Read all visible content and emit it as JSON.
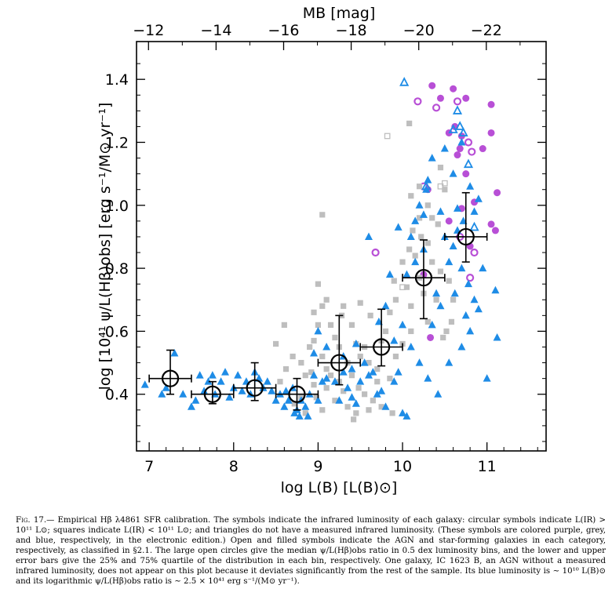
{
  "chart_data": {
    "type": "scatter",
    "xlabel": "log L(B) [L(B)⊙]",
    "ylabel": "log [10⁴¹ ψ/L(Hβ)obs] [erg s⁻¹/M⊙ yr⁻¹]",
    "top_xlabel": "MB [mag]",
    "xlim": [
      6.85,
      11.7
    ],
    "ylim": [
      0.22,
      1.52
    ],
    "xticks": [
      7,
      8,
      9,
      10,
      11
    ],
    "yticks": [
      0.4,
      0.6,
      0.8,
      1.0,
      1.2,
      1.4
    ],
    "xtick_labels": [
      "7",
      "8",
      "9",
      "10",
      "11"
    ],
    "ytick_labels": [
      "0.4",
      "0.6",
      "0.8",
      "1.0",
      "1.2",
      "1.4"
    ],
    "top_ticks": [
      -12,
      -14,
      -16,
      -18,
      -20,
      -22
    ],
    "top_tick_labels": [
      "−12",
      "−14",
      "−16",
      "−18",
      "−20",
      "−22"
    ],
    "colors": {
      "purple": "#b84fd6",
      "grey": "#bebebe",
      "blue": "#1e8ce6",
      "median": "#000000"
    },
    "series": [
      {
        "marker": "filled-circle",
        "color": "purple",
        "points": [
          [
            10.35,
            1.38
          ],
          [
            10.6,
            1.37
          ],
          [
            10.75,
            1.34
          ],
          [
            10.45,
            1.34
          ],
          [
            11.05,
            1.32
          ],
          [
            10.55,
            1.23
          ],
          [
            10.7,
            1.22
          ],
          [
            10.68,
            1.18
          ],
          [
            10.62,
            1.25
          ],
          [
            11.05,
            1.23
          ],
          [
            10.65,
            1.16
          ],
          [
            10.95,
            1.18
          ],
          [
            10.75,
            1.1
          ],
          [
            10.3,
            1.05
          ],
          [
            11.12,
            1.04
          ],
          [
            10.85,
            1.01
          ],
          [
            10.7,
            0.99
          ],
          [
            10.55,
            0.95
          ],
          [
            11.05,
            0.94
          ],
          [
            11.1,
            0.92
          ],
          [
            10.8,
            0.87
          ],
          [
            10.25,
            0.78
          ],
          [
            10.33,
            0.58
          ]
        ]
      },
      {
        "marker": "open-circle",
        "color": "purple",
        "points": [
          [
            10.18,
            1.33
          ],
          [
            10.4,
            1.31
          ],
          [
            10.65,
            1.33
          ],
          [
            10.78,
            1.2
          ],
          [
            10.82,
            1.17
          ],
          [
            10.25,
            1.06
          ],
          [
            10.68,
            0.9
          ],
          [
            10.85,
            0.85
          ],
          [
            9.68,
            0.85
          ],
          [
            10.8,
            0.77
          ]
        ]
      },
      {
        "marker": "filled-square",
        "color": "grey",
        "points": [
          [
            10.08,
            1.26
          ],
          [
            10.45,
            1.12
          ],
          [
            10.2,
            1.06
          ],
          [
            10.1,
            1.03
          ],
          [
            10.3,
            1.0
          ],
          [
            10.35,
            0.96
          ],
          [
            10.42,
            0.94
          ],
          [
            10.12,
            0.92
          ],
          [
            10.22,
            0.9
          ],
          [
            10.3,
            0.88
          ],
          [
            10.08,
            0.86
          ],
          [
            10.15,
            0.84
          ],
          [
            10.35,
            0.82
          ],
          [
            10.0,
            0.82
          ],
          [
            10.45,
            0.79
          ],
          [
            10.2,
            0.77
          ],
          [
            10.55,
            0.76
          ],
          [
            9.9,
            0.76
          ],
          [
            10.05,
            0.74
          ],
          [
            10.25,
            0.72
          ],
          [
            10.4,
            0.7
          ],
          [
            10.1,
            0.68
          ],
          [
            9.92,
            0.7
          ],
          [
            9.85,
            0.66
          ],
          [
            10.3,
            0.63
          ],
          [
            10.52,
            0.6
          ],
          [
            10.1,
            0.6
          ],
          [
            9.8,
            0.6
          ],
          [
            9.75,
            0.57
          ],
          [
            9.55,
            0.55
          ],
          [
            9.45,
            0.56
          ],
          [
            9.5,
            0.52
          ],
          [
            9.6,
            0.5
          ],
          [
            9.7,
            0.48
          ],
          [
            9.35,
            0.5
          ],
          [
            9.25,
            0.55
          ],
          [
            9.2,
            0.58
          ],
          [
            9.15,
            0.62
          ],
          [
            9.28,
            0.65
          ],
          [
            9.1,
            0.7
          ],
          [
            9.05,
            0.68
          ],
          [
            9.3,
            0.68
          ],
          [
            9.5,
            0.69
          ],
          [
            9.4,
            0.62
          ],
          [
            9.0,
            0.62
          ],
          [
            8.95,
            0.57
          ],
          [
            8.9,
            0.55
          ],
          [
            9.05,
            0.52
          ],
          [
            9.1,
            0.48
          ],
          [
            8.92,
            0.47
          ],
          [
            8.85,
            0.46
          ],
          [
            8.8,
            0.5
          ],
          [
            8.7,
            0.52
          ],
          [
            8.62,
            0.48
          ],
          [
            8.95,
            0.43
          ],
          [
            9.1,
            0.42
          ],
          [
            9.3,
            0.41
          ],
          [
            9.48,
            0.42
          ],
          [
            9.55,
            0.4
          ],
          [
            9.65,
            0.38
          ],
          [
            9.75,
            0.36
          ],
          [
            9.6,
            0.35
          ],
          [
            9.45,
            0.34
          ],
          [
            9.35,
            0.36
          ],
          [
            9.42,
            0.32
          ],
          [
            9.2,
            0.38
          ],
          [
            8.98,
            0.39
          ],
          [
            8.8,
            0.39
          ],
          [
            8.72,
            0.37
          ],
          [
            8.85,
            0.34
          ],
          [
            9.05,
            0.35
          ],
          [
            9.0,
            0.75
          ],
          [
            8.95,
            0.66
          ],
          [
            8.6,
            0.62
          ],
          [
            8.5,
            0.56
          ],
          [
            8.55,
            0.44
          ],
          [
            9.7,
            0.44
          ],
          [
            9.85,
            0.45
          ],
          [
            9.92,
            0.52
          ],
          [
            10.0,
            0.56
          ],
          [
            9.88,
            0.34
          ],
          [
            9.15,
            0.46
          ],
          [
            9.25,
            0.44
          ],
          [
            9.4,
            0.46
          ],
          [
            9.62,
            0.65
          ],
          [
            10.58,
            0.63
          ],
          [
            10.48,
            0.58
          ],
          [
            10.6,
            0.7
          ],
          [
            10.2,
            0.96
          ],
          [
            9.05,
            0.97
          ],
          [
            10.5,
            1.05
          ]
        ]
      },
      {
        "marker": "open-square",
        "color": "grey",
        "points": [
          [
            9.82,
            1.22
          ],
          [
            10.5,
            1.07
          ],
          [
            10.45,
            1.06
          ],
          [
            10.0,
            0.74
          ]
        ]
      },
      {
        "marker": "filled-triangle",
        "color": "blue",
        "points": [
          [
            6.95,
            0.43
          ],
          [
            7.3,
            0.53
          ],
          [
            7.2,
            0.42
          ],
          [
            7.15,
            0.4
          ],
          [
            7.4,
            0.4
          ],
          [
            7.5,
            0.36
          ],
          [
            7.55,
            0.38
          ],
          [
            7.6,
            0.46
          ],
          [
            7.65,
            0.41
          ],
          [
            7.7,
            0.44
          ],
          [
            7.75,
            0.46
          ],
          [
            7.78,
            0.4
          ],
          [
            7.85,
            0.44
          ],
          [
            7.9,
            0.47
          ],
          [
            7.95,
            0.39
          ],
          [
            8.0,
            0.42
          ],
          [
            8.05,
            0.46
          ],
          [
            8.1,
            0.41
          ],
          [
            8.15,
            0.44
          ],
          [
            8.2,
            0.4
          ],
          [
            8.25,
            0.47
          ],
          [
            8.3,
            0.45
          ],
          [
            8.35,
            0.42
          ],
          [
            8.4,
            0.44
          ],
          [
            8.45,
            0.41
          ],
          [
            8.5,
            0.38
          ],
          [
            8.55,
            0.4
          ],
          [
            8.6,
            0.36
          ],
          [
            8.62,
            0.41
          ],
          [
            8.65,
            0.38
          ],
          [
            8.7,
            0.42
          ],
          [
            8.72,
            0.34
          ],
          [
            8.75,
            0.35
          ],
          [
            8.78,
            0.33
          ],
          [
            8.8,
            0.38
          ],
          [
            8.85,
            0.36
          ],
          [
            8.88,
            0.33
          ],
          [
            8.9,
            0.4
          ],
          [
            8.95,
            0.53
          ],
          [
            9.0,
            0.38
          ],
          [
            9.05,
            0.44
          ],
          [
            9.1,
            0.45
          ],
          [
            9.2,
            0.44
          ],
          [
            9.25,
            0.38
          ],
          [
            9.3,
            0.47
          ],
          [
            9.35,
            0.42
          ],
          [
            9.4,
            0.39
          ],
          [
            9.45,
            0.37
          ],
          [
            9.5,
            0.44
          ],
          [
            9.55,
            0.5
          ],
          [
            9.6,
            0.46
          ],
          [
            9.65,
            0.47
          ],
          [
            9.7,
            0.4
          ],
          [
            9.75,
            0.41
          ],
          [
            9.8,
            0.36
          ],
          [
            9.9,
            0.44
          ],
          [
            9.95,
            0.47
          ],
          [
            10.0,
            0.34
          ],
          [
            10.05,
            0.33
          ],
          [
            10.1,
            0.9
          ],
          [
            10.15,
            0.95
          ],
          [
            10.2,
            1.0
          ],
          [
            10.25,
            0.97
          ],
          [
            10.28,
            1.05
          ],
          [
            10.35,
            1.15
          ],
          [
            10.4,
            0.72
          ],
          [
            10.45,
            0.68
          ],
          [
            10.5,
            0.9
          ],
          [
            10.55,
            0.82
          ],
          [
            10.6,
            0.87
          ],
          [
            10.65,
            0.92
          ],
          [
            10.7,
            0.8
          ],
          [
            10.75,
            0.65
          ],
          [
            10.8,
            0.6
          ],
          [
            10.9,
            0.67
          ],
          [
            10.95,
            0.8
          ],
          [
            11.1,
            0.73
          ],
          [
            11.12,
            0.58
          ],
          [
            11.0,
            0.45
          ],
          [
            10.35,
            0.62
          ],
          [
            10.55,
            0.5
          ],
          [
            10.7,
            0.55
          ],
          [
            10.85,
            0.98
          ],
          [
            10.9,
            1.02
          ],
          [
            10.8,
            1.06
          ],
          [
            10.65,
            0.99
          ],
          [
            10.45,
            0.98
          ],
          [
            10.25,
            0.86
          ],
          [
            10.15,
            0.82
          ],
          [
            10.05,
            0.78
          ],
          [
            9.95,
            0.93
          ],
          [
            9.85,
            0.78
          ],
          [
            9.8,
            0.68
          ],
          [
            9.6,
            0.9
          ],
          [
            9.72,
            0.63
          ],
          [
            9.9,
            0.57
          ],
          [
            10.0,
            0.62
          ],
          [
            10.1,
            0.55
          ],
          [
            10.2,
            0.5
          ],
          [
            10.3,
            0.45
          ],
          [
            10.42,
            0.4
          ],
          [
            9.1,
            0.55
          ],
          [
            9.3,
            0.52
          ],
          [
            9.4,
            0.48
          ],
          [
            9.0,
            0.6
          ],
          [
            8.95,
            0.46
          ],
          [
            9.45,
            0.56
          ],
          [
            10.6,
            1.1
          ],
          [
            10.5,
            1.18
          ],
          [
            10.7,
            1.2
          ],
          [
            10.3,
            1.08
          ],
          [
            10.78,
            0.75
          ],
          [
            10.85,
            0.7
          ],
          [
            10.62,
            0.72
          ],
          [
            10.72,
            0.95
          ]
        ]
      },
      {
        "marker": "open-triangle",
        "color": "blue",
        "points": [
          [
            10.02,
            1.39
          ],
          [
            10.65,
            1.3
          ],
          [
            10.6,
            1.24
          ],
          [
            10.68,
            1.25
          ],
          [
            10.72,
            1.23
          ],
          [
            10.78,
            1.13
          ],
          [
            10.85,
            0.93
          ],
          [
            10.28,
            1.06
          ]
        ]
      }
    ],
    "medians": {
      "x": [
        7.25,
        7.75,
        8.25,
        8.75,
        9.25,
        9.75,
        10.25,
        10.75
      ],
      "y": [
        0.45,
        0.4,
        0.42,
        0.4,
        0.5,
        0.55,
        0.77,
        0.9
      ],
      "y_low": [
        0.4,
        0.37,
        0.38,
        0.35,
        0.43,
        0.49,
        0.64,
        0.82
      ],
      "y_high": [
        0.54,
        0.44,
        0.5,
        0.45,
        0.65,
        0.67,
        0.89,
        1.04
      ],
      "x_halfwidth": 0.25
    }
  },
  "caption": {
    "label": "Fig. 17.—",
    "text": "Empirical Hβ λ4861 SFR calibration. The symbols indicate the infrared luminosity of each galaxy: circular symbols indicate L(IR) > 10¹¹ L⊙; squares indicate L(IR) < 10¹¹ L⊙; and triangles do not have a measured infrared luminosity. (These symbols are colored purple, grey, and blue, respectively, in the electronic edition.) Open and filled symbols indicate the AGN and star-forming galaxies in each category, respectively, as classified in §2.1. The large open circles give the median ψ/L(Hβ)obs ratio in 0.5 dex luminosity bins, and the lower and upper error bars give the 25% and 75% quartile of the distribution in each bin, respectively. One galaxy, IC 1623 B, an AGN without a measured infrared luminosity, does not appear on this plot because it deviates significantly from the rest of the sample. Its blue luminosity is ∼ 10¹⁰ L(B)⊙ and its logarithmic ψ/L(Hβ)obs ratio is ∼ 2.5 × 10⁴¹ erg s⁻¹/(M⊙ yr⁻¹)."
  }
}
